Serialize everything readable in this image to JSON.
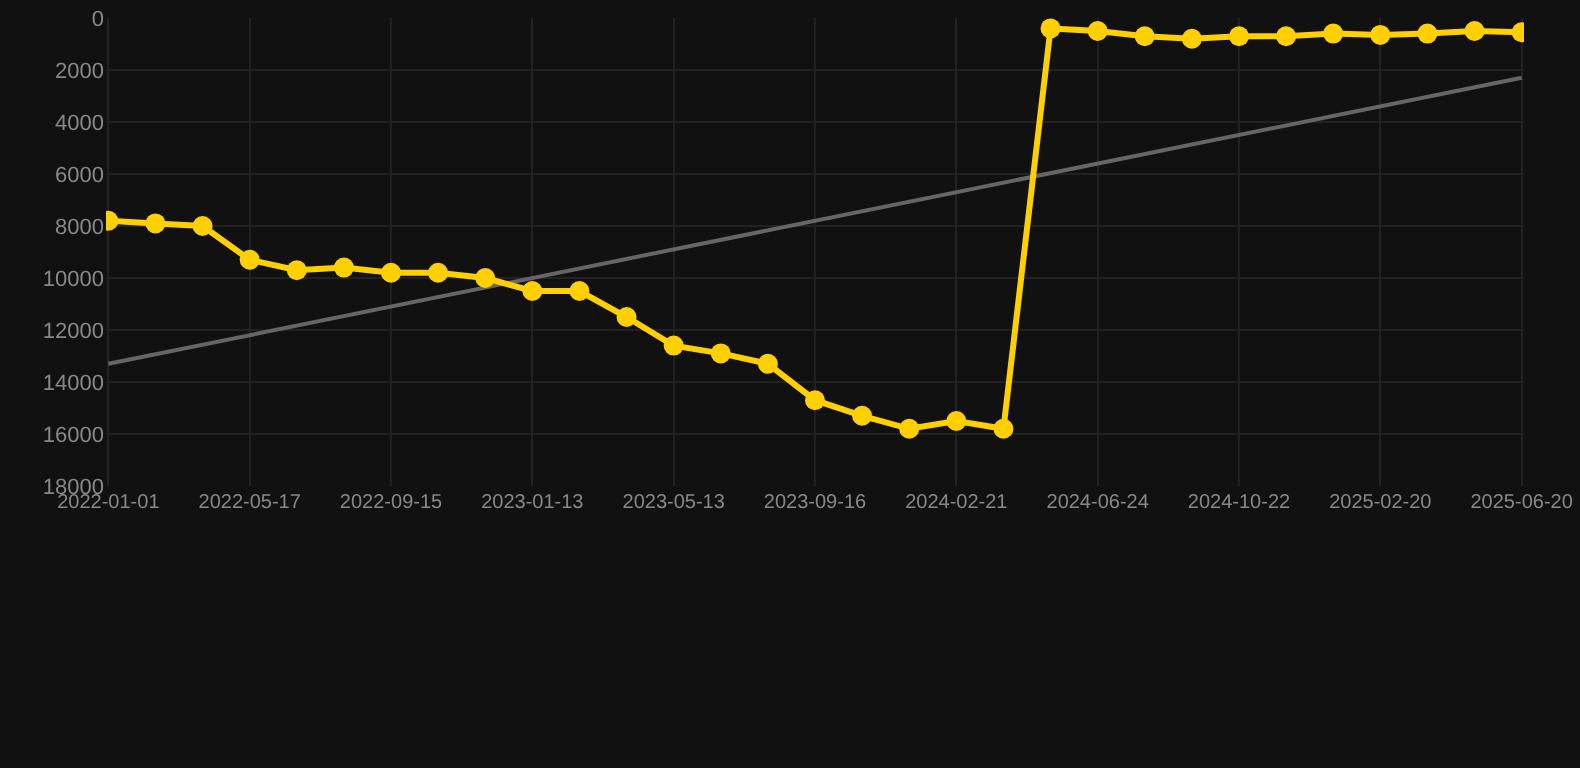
{
  "chart_data": {
    "type": "line",
    "categories": [
      "2022-01-01",
      null,
      null,
      "2022-05-17",
      null,
      null,
      "2022-09-15",
      null,
      null,
      "2023-01-13",
      null,
      null,
      "2023-05-13",
      null,
      null,
      "2023-09-16",
      null,
      null,
      "2024-02-21",
      null,
      null,
      "2024-06-24",
      null,
      null,
      "2024-10-22",
      null,
      null,
      "2025-02-20",
      null,
      null,
      "2025-06-20"
    ],
    "series": [
      {
        "color": "#ffd000",
        "marker": "circle",
        "values": [
          7800,
          7900,
          8000,
          9300,
          9700,
          9600,
          9800,
          9800,
          10000,
          10500,
          10500,
          11500,
          12600,
          12900,
          13300,
          14700,
          15300,
          15800,
          15500,
          15800,
          400,
          500,
          700,
          800,
          700,
          700,
          600,
          650,
          600,
          500,
          550
        ]
      },
      {
        "type": "line",
        "color": "#666666",
        "marker": "none",
        "values": [
          13300,
          null,
          null,
          null,
          null,
          null,
          null,
          null,
          null,
          null,
          null,
          null,
          null,
          null,
          null,
          null,
          null,
          null,
          null,
          null,
          null,
          null,
          null,
          null,
          null,
          null,
          null,
          null,
          null,
          null,
          2300
        ]
      }
    ],
    "ylim": [
      18000,
      0
    ],
    "yticks": [
      0,
      2000,
      4000,
      6000,
      8000,
      10000,
      12000,
      14000,
      16000,
      18000
    ],
    "grid": true,
    "line_style": "solid"
  }
}
